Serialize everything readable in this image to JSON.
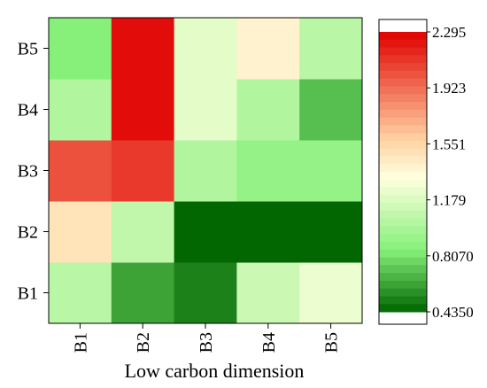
{
  "chart_data": {
    "type": "heatmap",
    "title": "",
    "xlabel": "Low carbon dimension",
    "ylabel": "",
    "x_categories": [
      "B1",
      "B2",
      "B3",
      "B4",
      "B5"
    ],
    "y_categories": [
      "B1",
      "B2",
      "B3",
      "B4",
      "B5"
    ],
    "values": [
      [
        1.05,
        0.62,
        0.52,
        1.12,
        1.25
      ],
      [
        1.48,
        1.08,
        0.44,
        0.44,
        0.44
      ],
      [
        2.02,
        2.1,
        1.02,
        0.9,
        0.9
      ],
      [
        1.02,
        2.25,
        1.22,
        1.02,
        0.7
      ],
      [
        0.85,
        2.25,
        1.22,
        1.4,
        1.05
      ]
    ],
    "colorbar": {
      "min": 0.435,
      "max": 2.295,
      "tick_values": [
        2.295,
        1.923,
        1.551,
        1.179,
        0.807,
        0.435
      ],
      "tick_labels": [
        "2.295",
        "1.923",
        "1.551",
        "1.179",
        "0.8070",
        "0.4350"
      ],
      "position": "right"
    },
    "colors": {
      "low": "#006400",
      "mid_low": "#86f07a",
      "mid": "#ffffdf",
      "mid_high": "#ffd0a0",
      "high": "#e00000"
    }
  }
}
